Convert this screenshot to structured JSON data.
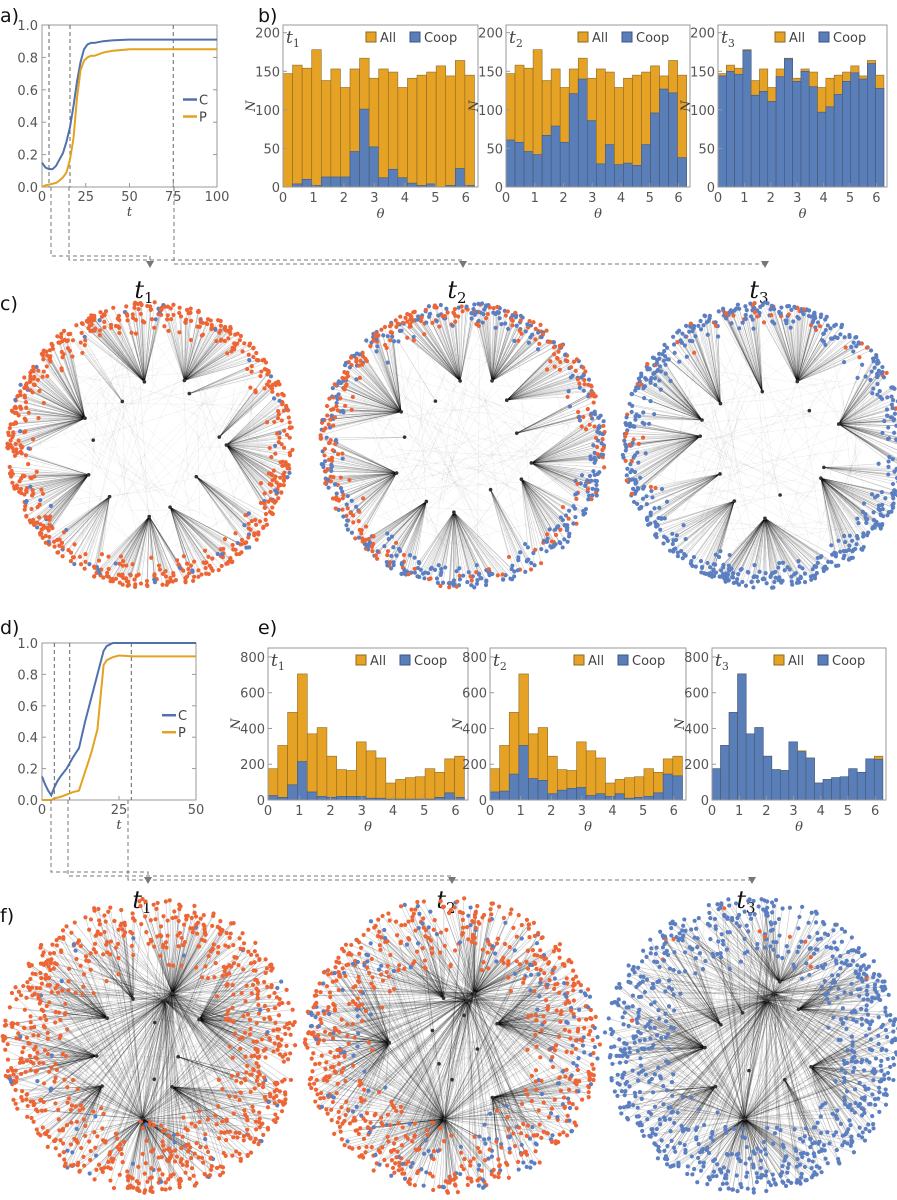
{
  "colors": {
    "coop_line": "#4f71ad",
    "p_line": "#e3a21f",
    "all_bar": "#e5a224",
    "coop_bar": "#5a7fb8",
    "node_defector": "#ee6535",
    "node_coop": "#5b7fc0"
  },
  "panel_labels": {
    "a": "a)",
    "b": "b)",
    "c": "c)",
    "d": "d)",
    "e": "e)",
    "f": "f)"
  },
  "time_labels": {
    "t1": "t",
    "t1_sub": "1",
    "t2": "t",
    "t2_sub": "2",
    "t3": "t",
    "t3_sub": "3"
  },
  "chart_data": [
    {
      "id": "a",
      "type": "line",
      "xlabel": "t",
      "ylabel": "",
      "xlim": [
        0,
        100
      ],
      "ylim": [
        0,
        1
      ],
      "xticks": [
        "0",
        "25",
        "50",
        "75",
        "100"
      ],
      "yticks": [
        "0.0",
        "0.2",
        "0.4",
        "0.6",
        "0.8",
        "1.0"
      ],
      "legend": [
        "C",
        "P"
      ],
      "legend_position": "right",
      "snapshot_times": [
        4,
        16,
        75
      ],
      "x": [
        0,
        2,
        4,
        6,
        8,
        10,
        12,
        14,
        16,
        18,
        20,
        22,
        24,
        26,
        28,
        30,
        35,
        40,
        50,
        60,
        75,
        100
      ],
      "series": [
        {
          "name": "C",
          "values": [
            0.15,
            0.12,
            0.11,
            0.11,
            0.13,
            0.17,
            0.21,
            0.28,
            0.37,
            0.5,
            0.65,
            0.77,
            0.85,
            0.88,
            0.89,
            0.89,
            0.9,
            0.905,
            0.91,
            0.91,
            0.91,
            0.91
          ]
        },
        {
          "name": "P",
          "values": [
            0.0,
            0.01,
            0.015,
            0.02,
            0.025,
            0.04,
            0.06,
            0.09,
            0.17,
            0.3,
            0.55,
            0.72,
            0.78,
            0.8,
            0.81,
            0.81,
            0.83,
            0.84,
            0.85,
            0.85,
            0.85,
            0.85
          ]
        }
      ]
    },
    {
      "id": "b1",
      "type": "bar",
      "title": "t",
      "title_sub": "1",
      "xlabel": "θ",
      "ylabel": "N",
      "ylim": [
        0,
        210
      ],
      "xlim": [
        0,
        6.4
      ],
      "xticks": [
        "0",
        "1",
        "2",
        "3",
        "4",
        "5",
        "6"
      ],
      "yticks": [
        "0",
        "50",
        "100",
        "150",
        "200"
      ],
      "legend": [
        "All",
        "Coop"
      ],
      "series": [
        {
          "name": "All",
          "values": [
            147,
            158,
            154,
            178,
            138,
            153,
            129,
            153,
            167,
            141,
            153,
            149,
            129,
            141,
            145,
            149,
            157,
            144,
            164,
            145
          ]
        },
        {
          "name": "Coop",
          "values": [
            0,
            4,
            10,
            2,
            13,
            13,
            13,
            46,
            101,
            52,
            12,
            23,
            12,
            5,
            2,
            4,
            0,
            2,
            24,
            2
          ]
        }
      ]
    },
    {
      "id": "b2",
      "type": "bar",
      "title": "t",
      "title_sub": "2",
      "xlabel": "θ",
      "ylabel": "N",
      "ylim": [
        0,
        210
      ],
      "xlim": [
        0,
        6.4
      ],
      "xticks": [
        "0",
        "1",
        "2",
        "3",
        "4",
        "5",
        "6"
      ],
      "yticks": [
        "0",
        "50",
        "100",
        "150",
        "200"
      ],
      "legend": [
        "All",
        "Coop"
      ],
      "series": [
        {
          "name": "All",
          "values": [
            147,
            158,
            154,
            178,
            138,
            153,
            129,
            153,
            167,
            141,
            153,
            149,
            129,
            141,
            145,
            149,
            157,
            144,
            164,
            145
          ]
        },
        {
          "name": "Coop",
          "values": [
            61,
            58,
            46,
            42,
            67,
            79,
            58,
            121,
            140,
            86,
            30,
            55,
            29,
            31,
            28,
            55,
            96,
            127,
            122,
            38
          ]
        }
      ]
    },
    {
      "id": "b3",
      "type": "bar",
      "title": "t",
      "title_sub": "3",
      "xlabel": "θ",
      "ylabel": "N",
      "ylim": [
        0,
        210
      ],
      "xlim": [
        0,
        6.4
      ],
      "xticks": [
        "0",
        "1",
        "2",
        "3",
        "4",
        "5",
        "6"
      ],
      "yticks": [
        "0",
        "50",
        "100",
        "150",
        "200"
      ],
      "legend": [
        "All",
        "Coop"
      ],
      "series": [
        {
          "name": "All",
          "values": [
            147,
            158,
            154,
            178,
            138,
            153,
            129,
            153,
            167,
            141,
            153,
            149,
            129,
            141,
            145,
            149,
            157,
            144,
            164,
            145
          ]
        },
        {
          "name": "Coop",
          "values": [
            144,
            150,
            146,
            177,
            119,
            124,
            111,
            143,
            166,
            137,
            150,
            130,
            97,
            104,
            120,
            137,
            148,
            140,
            160,
            128
          ]
        }
      ]
    },
    {
      "id": "d",
      "type": "line",
      "xlabel": "t",
      "ylabel": "",
      "xlim": [
        0,
        50
      ],
      "ylim": [
        0,
        1
      ],
      "xticks": [
        "0",
        "25",
        "50"
      ],
      "yticks": [
        "0.0",
        "0.2",
        "0.4",
        "0.6",
        "0.8",
        "1.0"
      ],
      "legend": [
        "C",
        "P"
      ],
      "legend_position": "right",
      "snapshot_times": [
        4,
        9,
        29
      ],
      "x": [
        0,
        1,
        2,
        3,
        4,
        5,
        6,
        8,
        10,
        12,
        14,
        16,
        18,
        20,
        21,
        22,
        23,
        25,
        30,
        40,
        50
      ],
      "series": [
        {
          "name": "C",
          "values": [
            0.15,
            0.1,
            0.06,
            0.03,
            0.08,
            0.12,
            0.15,
            0.2,
            0.27,
            0.33,
            0.5,
            0.65,
            0.8,
            0.95,
            0.98,
            0.99,
            1,
            1,
            1,
            1,
            1
          ]
        },
        {
          "name": "P",
          "values": [
            0,
            0,
            0,
            0,
            0.01,
            0.015,
            0.02,
            0.035,
            0.05,
            0.06,
            0.18,
            0.3,
            0.45,
            0.86,
            0.89,
            0.9,
            0.91,
            0.92,
            0.915,
            0.915,
            0.915
          ]
        }
      ]
    },
    {
      "id": "e1",
      "type": "bar",
      "title": "t",
      "title_sub": "1",
      "xlabel": "θ",
      "ylabel": "N",
      "ylim": [
        0,
        850
      ],
      "xlim": [
        0,
        6.4
      ],
      "xticks": [
        "0",
        "1",
        "2",
        "3",
        "4",
        "5",
        "6"
      ],
      "yticks": [
        "0",
        "200",
        "400",
        "600",
        "800"
      ],
      "legend": [
        "All",
        "Coop"
      ],
      "series": [
        {
          "name": "All",
          "values": [
            175,
            305,
            490,
            705,
            370,
            405,
            245,
            170,
            165,
            325,
            275,
            235,
            95,
            115,
            125,
            130,
            175,
            155,
            230,
            245
          ]
        },
        {
          "name": "Coop",
          "values": [
            25,
            15,
            85,
            215,
            45,
            20,
            15,
            20,
            20,
            20,
            10,
            10,
            5,
            5,
            5,
            5,
            5,
            15,
            40,
            15
          ]
        }
      ]
    },
    {
      "id": "e2",
      "type": "bar",
      "title": "t",
      "title_sub": "2",
      "xlabel": "θ",
      "ylabel": "N",
      "ylim": [
        0,
        850
      ],
      "xlim": [
        0,
        6.4
      ],
      "xticks": [
        "0",
        "1",
        "2",
        "3",
        "4",
        "5",
        "6"
      ],
      "yticks": [
        "0",
        "200",
        "400",
        "600",
        "800"
      ],
      "legend": [
        "All",
        "Coop"
      ],
      "series": [
        {
          "name": "All",
          "values": [
            175,
            305,
            490,
            705,
            370,
            405,
            245,
            170,
            165,
            325,
            275,
            235,
            95,
            115,
            125,
            130,
            175,
            155,
            230,
            245
          ]
        },
        {
          "name": "Coop",
          "values": [
            45,
            50,
            145,
            305,
            120,
            110,
            35,
            55,
            65,
            70,
            25,
            35,
            20,
            35,
            10,
            15,
            20,
            40,
            145,
            135
          ]
        }
      ]
    },
    {
      "id": "e3",
      "type": "bar",
      "title": "t",
      "title_sub": "3",
      "xlabel": "θ",
      "ylabel": "N",
      "ylim": [
        0,
        850
      ],
      "xlim": [
        0,
        6.4
      ],
      "xticks": [
        "0",
        "1",
        "2",
        "3",
        "4",
        "5",
        "6"
      ],
      "yticks": [
        "0",
        "200",
        "400",
        "600",
        "800"
      ],
      "legend": [
        "All",
        "Coop"
      ],
      "series": [
        {
          "name": "All",
          "values": [
            175,
            305,
            490,
            705,
            370,
            405,
            245,
            170,
            165,
            325,
            275,
            235,
            95,
            115,
            125,
            130,
            175,
            155,
            230,
            245
          ]
        },
        {
          "name": "Coop",
          "values": [
            175,
            305,
            490,
            705,
            370,
            405,
            245,
            170,
            165,
            325,
            270,
            235,
            95,
            115,
            125,
            130,
            175,
            155,
            230,
            228
          ]
        }
      ]
    }
  ],
  "networks": [
    {
      "id": "c1",
      "coop_fraction": 0.08
    },
    {
      "id": "c2",
      "coop_fraction": 0.45
    },
    {
      "id": "c3",
      "coop_fraction": 0.88
    },
    {
      "id": "f1",
      "coop_fraction": 0.05
    },
    {
      "id": "f2",
      "coop_fraction": 0.2
    },
    {
      "id": "f3",
      "coop_fraction": 0.97
    }
  ]
}
